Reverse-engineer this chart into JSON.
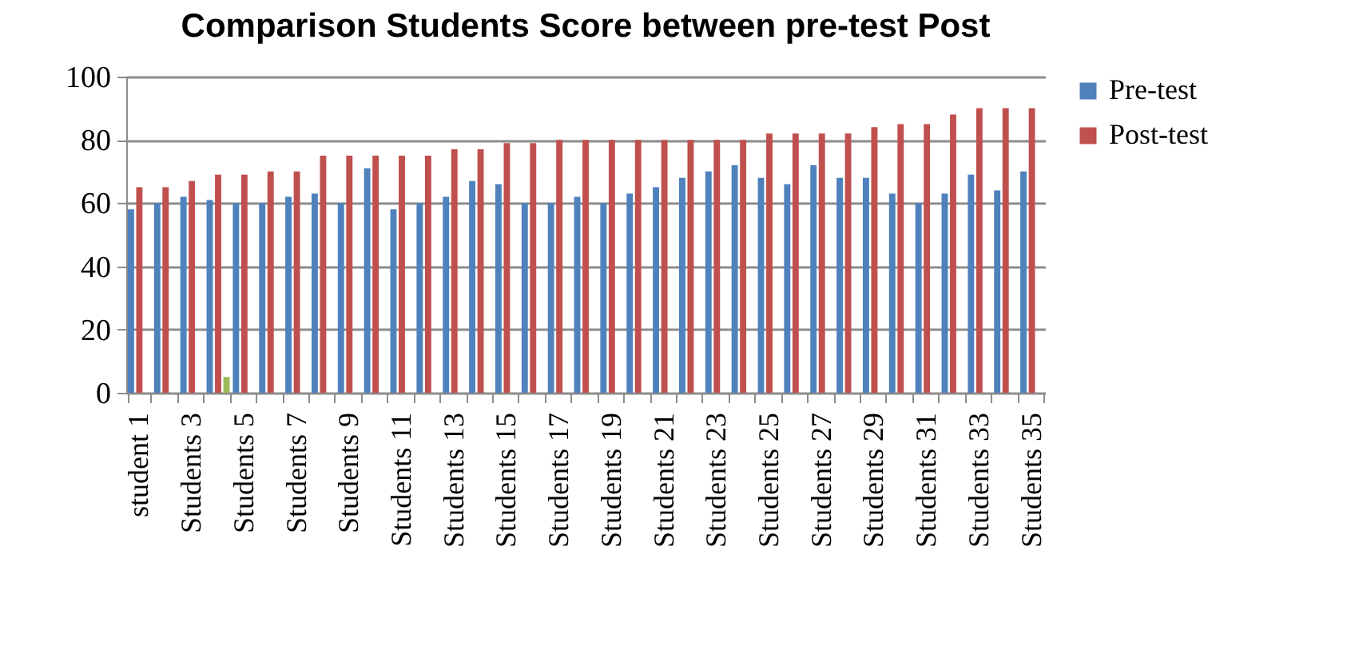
{
  "chart_data": {
    "type": "bar",
    "title": "Comparison Students Score between pre-test Post",
    "categories": [
      "student 1",
      null,
      "Students 3",
      null,
      "Students 5",
      null,
      "Students 7",
      null,
      "Students 9",
      null,
      "Students 11",
      null,
      "Students 13",
      null,
      "Students 15",
      null,
      "Students 17",
      null,
      "Students 19",
      null,
      "Students 21",
      null,
      "Students 23",
      null,
      "Students 25",
      null,
      "Students 27",
      null,
      "Students 29",
      null,
      "Students 31",
      null,
      "Students 33",
      null,
      "Students 35"
    ],
    "series": [
      {
        "name": "Pre-test",
        "color": "#4f81bd",
        "values": [
          58,
          60,
          62,
          61,
          60,
          60,
          62,
          63,
          60,
          71,
          58,
          60,
          62,
          67,
          66,
          60,
          60,
          62,
          60,
          63,
          65,
          68,
          70,
          72,
          68,
          66,
          72,
          68,
          68,
          63,
          60,
          63,
          69,
          64,
          70
        ]
      },
      {
        "name": "Post-test",
        "color": "#c0504d",
        "values": [
          65,
          65,
          67,
          69,
          69,
          70,
          70,
          75,
          75,
          75,
          75,
          75,
          77,
          77,
          79,
          79,
          80,
          80,
          80,
          80,
          80,
          80,
          80,
          80,
          82,
          82,
          82,
          82,
          84,
          85,
          85,
          88,
          90,
          90,
          90
        ]
      },
      {
        "color": "#9bbb59",
        "values": [
          null,
          null,
          null,
          5,
          null,
          null,
          null,
          null,
          null,
          null,
          null,
          null,
          null,
          null,
          null,
          null,
          null,
          null,
          null,
          null,
          null,
          null,
          null,
          null,
          null,
          null,
          null,
          null,
          null,
          null,
          null,
          null,
          null,
          null,
          null
        ]
      }
    ],
    "ylim": [
      0,
      100
    ],
    "yticks": [
      0,
      20,
      40,
      60,
      80,
      100
    ],
    "grid": "y",
    "legend": "right"
  }
}
